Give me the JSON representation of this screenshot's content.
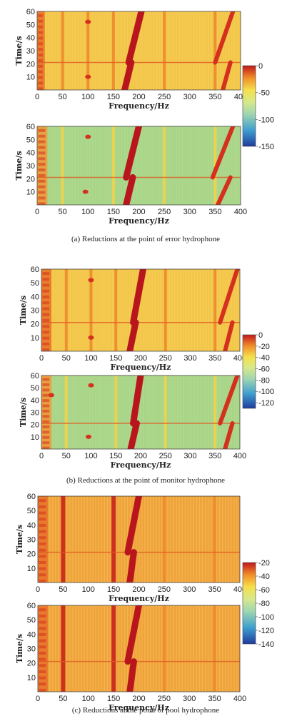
{
  "chart_data": [
    {
      "type": "heatmap",
      "group": "a",
      "panel": 1,
      "xlabel": "Frequency/Hz",
      "ylabel": "Time/s",
      "xlim": [
        0,
        400
      ],
      "ylim": [
        0,
        60
      ],
      "xticks": [
        0,
        50,
        100,
        150,
        200,
        250,
        300,
        350,
        400
      ],
      "yticks": [
        10,
        20,
        30,
        40,
        50,
        60
      ],
      "colormap": "jet",
      "base_level": "yellow-orange",
      "features": {
        "low_freq_band": [
          0,
          15
        ],
        "lines": [
          50,
          100,
          150,
          250,
          350
        ],
        "sweep1": {
          "t_break": 21,
          "lower": [
            [
              172,
              0
            ],
            [
              185,
              21
            ]
          ],
          "upper": [
            [
              180,
              21
            ],
            [
              205,
              60
            ]
          ]
        },
        "sweep2": {
          "t_break": 21,
          "lower": [
            [
              365,
              0
            ],
            [
              380,
              21
            ]
          ],
          "upper": [
            [
              350,
              21
            ],
            [
              385,
              60
            ]
          ]
        },
        "spots": [
          [
            100,
            10
          ],
          [
            100,
            52
          ]
        ]
      }
    },
    {
      "type": "heatmap",
      "group": "a",
      "panel": 2,
      "xlabel": "Frequency/Hz",
      "ylabel": "Time/s",
      "xlim": [
        0,
        400
      ],
      "ylim": [
        0,
        60
      ],
      "xticks": [
        0,
        50,
        100,
        150,
        200,
        250,
        300,
        350,
        400
      ],
      "yticks": [
        10,
        20,
        30,
        40,
        50,
        60
      ],
      "colormap": "jet",
      "base_level": "green",
      "features": {
        "low_freq_band": [
          0,
          20
        ],
        "lines": [
          50,
          150,
          250,
          350
        ],
        "sweep1": {
          "t_break": 21,
          "lower": [
            [
              175,
              0
            ],
            [
              188,
              21
            ]
          ],
          "upper": [
            [
              175,
              21
            ],
            [
              200,
              60
            ]
          ]
        },
        "sweep2": {
          "t_break": 21,
          "lower": [
            [
              355,
              0
            ],
            [
              380,
              21
            ]
          ],
          "upper": [
            [
              345,
              21
            ],
            [
              385,
              60
            ]
          ]
        },
        "spots": [
          [
            95,
            10
          ],
          [
            100,
            52
          ]
        ]
      }
    },
    {
      "type": "heatmap",
      "group": "b",
      "panel": 1,
      "xlabel": "Frequency/Hz",
      "ylabel": "Time/s",
      "xlim": [
        0,
        400
      ],
      "ylim": [
        0,
        60
      ],
      "xticks": [
        0,
        50,
        100,
        150,
        200,
        250,
        300,
        350,
        400
      ],
      "yticks": [
        10,
        20,
        30,
        40,
        50,
        60
      ],
      "colormap": "jet",
      "base_level": "yellow-orange",
      "features": {
        "low_freq_band": [
          0,
          20
        ],
        "lines": [
          50,
          100,
          150,
          250,
          350
        ],
        "sweep1": {
          "t_break": 21,
          "lower": [
            [
              178,
              0
            ],
            [
              190,
              21
            ]
          ],
          "upper": [
            [
              185,
              21
            ],
            [
              205,
              60
            ]
          ]
        },
        "sweep2": {
          "t_break": 21,
          "lower": [
            [
              370,
              0
            ],
            [
              385,
              21
            ]
          ],
          "upper": [
            [
              360,
              21
            ],
            [
              395,
              60
            ]
          ]
        },
        "spots": [
          [
            100,
            10
          ],
          [
            100,
            52
          ]
        ]
      }
    },
    {
      "type": "heatmap",
      "group": "b",
      "panel": 2,
      "xlabel": "Frequency/Hz",
      "ylabel": "Time/s",
      "xlim": [
        0,
        400
      ],
      "ylim": [
        0,
        60
      ],
      "xticks": [
        0,
        50,
        100,
        150,
        200,
        250,
        300,
        350,
        400
      ],
      "yticks": [
        10,
        20,
        30,
        40,
        50,
        60
      ],
      "colormap": "jet",
      "base_level": "green",
      "features": {
        "low_freq_band": [
          0,
          20
        ],
        "lines": [
          50,
          150,
          250,
          350
        ],
        "sweep1": {
          "t_break": 21,
          "lower": [
            [
              180,
              0
            ],
            [
              192,
              21
            ]
          ],
          "upper": [
            [
              185,
              21
            ],
            [
              200,
              60
            ]
          ]
        },
        "sweep2": {
          "t_break": 21,
          "lower": [
            [
              370,
              0
            ],
            [
              385,
              21
            ]
          ],
          "upper": [
            [
              360,
              21
            ],
            [
              395,
              60
            ]
          ]
        },
        "spots": [
          [
            95,
            10
          ],
          [
            100,
            52
          ],
          [
            20,
            44
          ]
        ]
      }
    },
    {
      "type": "heatmap",
      "group": "c",
      "panel": 1,
      "xlabel": "Frequency/Hz",
      "ylabel": "Time/s",
      "xlim": [
        0,
        400
      ],
      "ylim": [
        0,
        60
      ],
      "xticks": [
        0,
        50,
        100,
        150,
        200,
        250,
        300,
        350,
        400
      ],
      "yticks": [
        10,
        20,
        30,
        40,
        50,
        60
      ],
      "colormap": "jet",
      "base_level": "orange",
      "features": {
        "low_freq_band": [
          0,
          20
        ],
        "lines": [
          50,
          150,
          250,
          350
        ],
        "sweep1": {
          "t_break": 21,
          "lower": [
            [
              182,
              0
            ],
            [
              190,
              21
            ]
          ],
          "upper": [
            [
              178,
              21
            ],
            [
              200,
              60
            ]
          ]
        },
        "spots": []
      }
    },
    {
      "type": "heatmap",
      "group": "c",
      "panel": 2,
      "xlabel": "Frequency/Hz",
      "ylabel": "Time/s",
      "xlim": [
        0,
        400
      ],
      "ylim": [
        0,
        60
      ],
      "xticks": [
        0,
        50,
        100,
        150,
        200,
        250,
        300,
        350,
        400
      ],
      "yticks": [
        10,
        20,
        30,
        40,
        50,
        60
      ],
      "colormap": "jet",
      "base_level": "orange",
      "features": {
        "low_freq_band": [
          0,
          20
        ],
        "lines": [
          50,
          150,
          250,
          350
        ],
        "sweep1": {
          "t_break": 21,
          "lower": [
            [
              182,
              0
            ],
            [
              190,
              21
            ]
          ],
          "upper": [
            [
              178,
              21
            ],
            [
              200,
              60
            ]
          ]
        },
        "spots": []
      }
    }
  ],
  "colorbars": [
    {
      "group": "a",
      "range": [
        -150,
        0
      ],
      "ticks": [
        0,
        -50,
        -100,
        -150
      ]
    },
    {
      "group": "b",
      "range": [
        -130,
        0
      ],
      "ticks": [
        0,
        -20,
        -40,
        -60,
        -80,
        -100,
        -120
      ]
    },
    {
      "group": "c",
      "range": [
        -140,
        -20
      ],
      "ticks": [
        -20,
        -40,
        -60,
        -80,
        -100,
        -120,
        -140
      ]
    }
  ],
  "captions": [
    {
      "group": "a",
      "text": "(a) Reductions at the point of error hydrophone"
    },
    {
      "group": "b",
      "text": "(b) Reductions at the point of monitor hydrophone"
    },
    {
      "group": "c",
      "text": "(c) Reductions at the point of pool hydrophone"
    }
  ],
  "colors": {
    "red": "#d7191c",
    "orange": "#f28c28",
    "yellow": "#f5e04a",
    "green": "#9fd08a",
    "cyan": "#4fc3c8",
    "blue": "#1f3c9c"
  }
}
